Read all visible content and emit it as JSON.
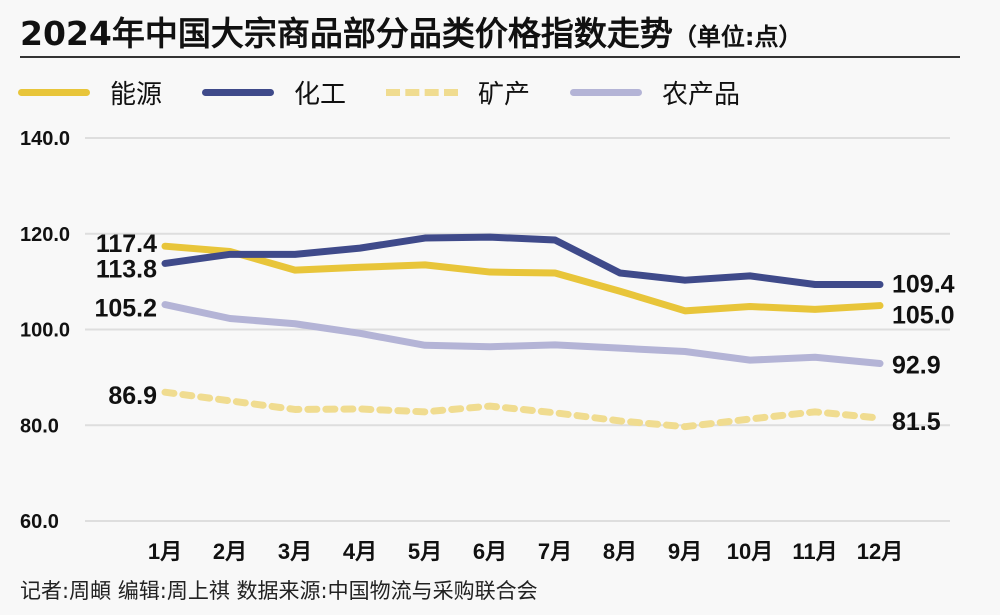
{
  "title": {
    "main": "2024年中国大宗商品部分品类价格指数走势",
    "unit": "（单位:点）"
  },
  "legend": [
    {
      "name": "能源",
      "color": "#e8c53a",
      "dash": false
    },
    {
      "name": "化工",
      "color": "#3f4a8a",
      "dash": false
    },
    {
      "name": "矿产",
      "color": "#f0dc90",
      "dash": true
    },
    {
      "name": "农产品",
      "color": "#b4b4d6",
      "dash": false
    }
  ],
  "footer": "记者:周頔  编辑:周上祺  数据来源:中国物流与采购联合会",
  "chart_data": {
    "type": "line",
    "title": "2024年中国大宗商品部分品类价格指数走势（单位:点）",
    "xlabel": "",
    "ylabel": "",
    "categories": [
      "1月",
      "2月",
      "3月",
      "4月",
      "5月",
      "6月",
      "7月",
      "8月",
      "9月",
      "10月",
      "11月",
      "12月"
    ],
    "y_ticks": [
      "140.0",
      "120.0",
      "100.0",
      "80.0",
      "60.0"
    ],
    "ylim": [
      60,
      140
    ],
    "grid": true,
    "legend_position": "top",
    "series": [
      {
        "name": "能源",
        "color": "#e8c53a",
        "style": "solid",
        "values": [
          117.4,
          116.3,
          112.4,
          113.0,
          113.5,
          112.0,
          111.8,
          108.0,
          103.9,
          104.8,
          104.2,
          105.0
        ],
        "start_label": "117.4",
        "end_label": "105.0"
      },
      {
        "name": "化工",
        "color": "#3f4a8a",
        "style": "solid",
        "values": [
          113.8,
          115.7,
          115.7,
          117.0,
          119.1,
          119.3,
          118.7,
          111.8,
          110.3,
          111.2,
          109.4,
          109.4
        ],
        "start_label": "113.8",
        "end_label": "109.4"
      },
      {
        "name": "矿产",
        "color": "#f0dc90",
        "style": "dashed",
        "values": [
          86.9,
          85.1,
          83.3,
          83.4,
          82.8,
          84.0,
          82.6,
          80.9,
          79.7,
          81.3,
          82.8,
          81.5
        ],
        "start_label": "86.9",
        "end_label": "81.5"
      },
      {
        "name": "农产品",
        "color": "#b4b4d6",
        "style": "solid",
        "values": [
          105.2,
          102.3,
          101.2,
          99.2,
          96.7,
          96.4,
          96.8,
          96.1,
          95.4,
          93.6,
          94.2,
          92.9
        ],
        "start_label": "105.2",
        "end_label": "92.9"
      }
    ]
  }
}
